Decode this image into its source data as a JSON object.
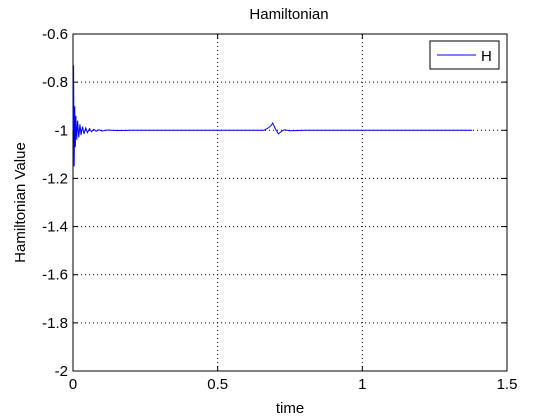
{
  "chart_data": {
    "type": "line",
    "title": "Hamiltonian",
    "xlabel": "time",
    "ylabel": "Hamiltonian Value",
    "xlim": [
      0,
      1.5
    ],
    "ylim": [
      -2,
      -0.6
    ],
    "xticks": [
      0,
      0.5,
      1,
      1.5
    ],
    "xtick_labels": [
      "0",
      "0.5",
      "1",
      "1.5"
    ],
    "yticks": [
      -2,
      -1.8,
      -1.6,
      -1.4,
      -1.2,
      -1,
      -0.8,
      -0.6
    ],
    "ytick_labels": [
      "-2",
      "-1.8",
      "-1.6",
      "-1.4",
      "-1.2",
      "-1",
      "-0.8",
      "-0.6"
    ],
    "grid": true,
    "legend": {
      "placement": "top-right",
      "entries": [
        "H"
      ]
    },
    "series": [
      {
        "name": "H",
        "color": "#0000ff",
        "x": [
          0,
          0.002,
          0.004,
          0.006,
          0.008,
          0.01,
          0.013,
          0.016,
          0.02,
          0.024,
          0.028,
          0.033,
          0.038,
          0.044,
          0.05,
          0.057,
          0.064,
          0.072,
          0.08,
          0.09,
          0.1,
          0.12,
          0.15,
          0.2,
          0.3,
          0.4,
          0.5,
          0.6,
          0.66,
          0.675,
          0.685,
          0.69,
          0.7,
          0.71,
          0.72,
          0.73,
          0.75,
          0.8,
          0.9,
          1.0,
          1.1,
          1.2,
          1.3,
          1.38
        ],
        "y": [
          -1.0,
          -0.73,
          -1.15,
          -0.9,
          -1.07,
          -0.94,
          -1.04,
          -0.96,
          -1.03,
          -0.975,
          -1.02,
          -0.985,
          -1.015,
          -0.99,
          -1.01,
          -0.993,
          -1.006,
          -0.996,
          -1.004,
          -0.998,
          -1.003,
          -0.999,
          -1.001,
          -1.0,
          -1.0,
          -1.0,
          -1.0,
          -1.0,
          -1.0,
          -0.99,
          -0.98,
          -0.97,
          -0.995,
          -1.015,
          -1.005,
          -0.998,
          -1.002,
          -1.0,
          -1.0,
          -1.0,
          -1.0,
          -1.0,
          -1.0,
          -1.0
        ]
      }
    ]
  }
}
